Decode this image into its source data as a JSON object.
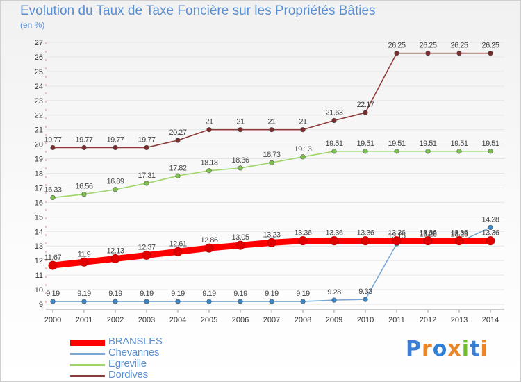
{
  "title": "Evolution du Taux de Taxe Foncière sur les Propriétés Bâties",
  "subtitle": "(en %)",
  "logo": {
    "text": "Proxiti",
    "colors": [
      "#3a7fd5",
      "#e8862a",
      "#2f7fd6",
      "#e8862a",
      "#6fbf2a",
      "#3a7fd5",
      "#e8862a"
    ]
  },
  "colors": {
    "axis_text": "#333333",
    "grid": "#e6e6e6",
    "label_text": "#444444"
  },
  "chart_data": {
    "type": "line",
    "title": "Evolution du Taux de Taxe Foncière sur les Propriétés Bâties",
    "ylabel": "(en %)",
    "xlabel": "",
    "ylim": [
      9,
      27
    ],
    "yticks": [
      9,
      10,
      11,
      12,
      13,
      14,
      15,
      16,
      17,
      18,
      19,
      20,
      21,
      22,
      23,
      24,
      25,
      26,
      27
    ],
    "grid": true,
    "legend_position": "bottom-left",
    "x": [
      "2000",
      "2001",
      "2002",
      "2003",
      "2004",
      "2005",
      "2006",
      "2007",
      "2008",
      "2009",
      "2010",
      "2011",
      "2012",
      "2013",
      "2014"
    ],
    "series": [
      {
        "name": "BRANSLES",
        "color": "#ff0000",
        "marker_color": "#e00000",
        "thick": true,
        "values": [
          11.67,
          11.9,
          12.13,
          12.37,
          12.61,
          12.86,
          13.05,
          13.23,
          13.36,
          13.36,
          13.36,
          13.36,
          13.36,
          13.36,
          13.36
        ]
      },
      {
        "name": "Chevannes",
        "color": "#7aa8d6",
        "marker_color": "#3b86c6",
        "thick": false,
        "values": [
          9.19,
          9.19,
          9.19,
          9.19,
          9.19,
          9.19,
          9.19,
          9.19,
          9.19,
          9.28,
          9.33,
          13.15,
          13.28,
          13.28,
          14.28
        ]
      },
      {
        "name": "Egreville",
        "color": "#9ed66a",
        "marker_color": "#7cc24a",
        "thick": false,
        "values": [
          16.33,
          16.56,
          16.89,
          17.31,
          17.82,
          18.18,
          18.36,
          18.73,
          19.13,
          19.51,
          19.51,
          19.51,
          19.51,
          19.51,
          19.51
        ]
      },
      {
        "name": "Dordives",
        "color": "#8c3a3a",
        "marker_color": "#7a2b2b",
        "thick": false,
        "values": [
          19.77,
          19.77,
          19.77,
          19.77,
          20.27,
          21,
          21,
          21,
          21,
          21.63,
          22.17,
          26.25,
          26.25,
          26.25,
          26.25
        ]
      }
    ],
    "value_labels": {
      "BRANSLES": [
        "11.67",
        "11.9",
        "12.13",
        "12.37",
        "12.61",
        "12.86",
        "13.05",
        "13.23",
        "13.36",
        "13.36",
        "13.36",
        "13.36",
        "13.36",
        "13.36",
        "13.36"
      ],
      "Chevannes": [
        "9.19",
        "9.19",
        "9.19",
        "9.19",
        "9.19",
        "9.19",
        "9.19",
        "9.19",
        "9.19",
        "9.28",
        "9.33",
        "13.15",
        "13.28",
        "13.28",
        "14.28"
      ],
      "Egreville": [
        "16.33",
        "16.56",
        "16.89",
        "17.31",
        "17.82",
        "18.18",
        "18.36",
        "18.73",
        "19.13",
        "19.51",
        "19.51",
        "19.51",
        "19.51",
        "19.51",
        "19.51"
      ],
      "Dordives": [
        "19.77",
        "19.77",
        "19.77",
        "19.77",
        "20.27",
        "21",
        "21",
        "21",
        "21",
        "21.63",
        "22.17",
        "26.25",
        "26.25",
        "26.25",
        "26.25"
      ]
    }
  }
}
